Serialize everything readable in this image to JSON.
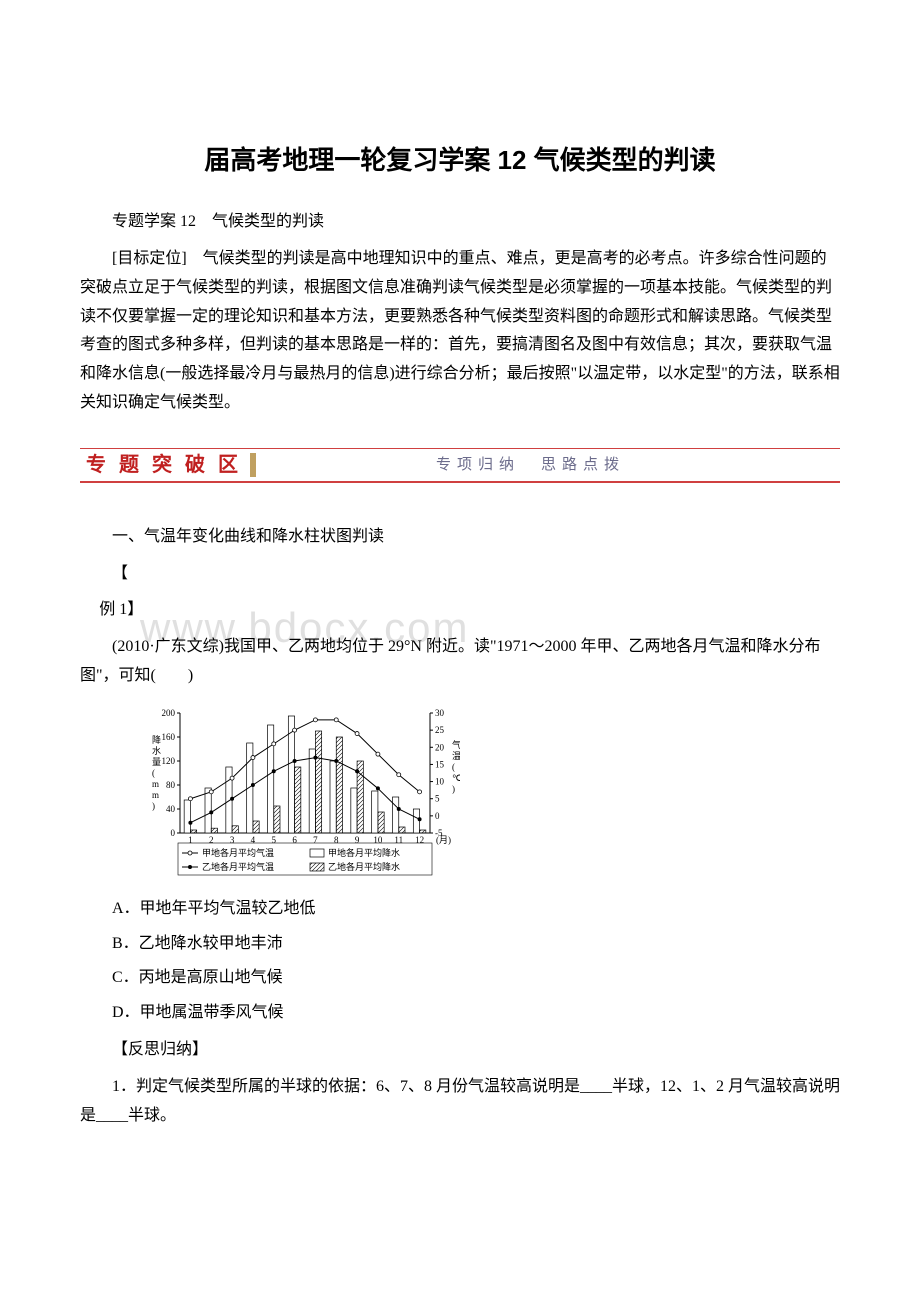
{
  "title": "届高考地理一轮复习学案 12 气候类型的判读",
  "subtitle_line": "专题学案 12　气候类型的判读",
  "target_para": "[目标定位]　气候类型的判读是高中地理知识中的重点、难点，更是高考的必考点。许多综合性问题的突破点立足于气候类型的判读，根据图文信息准确判读气候类型是必须掌握的一项基本技能。气候类型的判读不仅要掌握一定的理论知识和基本方法，更要熟悉各种气候类型资料图的命题形式和解读思路。气候类型考查的图式多种多样，但判读的基本思路是一样的：首先，要搞清图名及图中有效信息；其次，要获取气温和降水信息(一般选择最冷月与最热月的信息)进行综合分析；最后按照\"以温定带，以水定型\"的方法，联系相关知识确定气候类型。",
  "banner": {
    "left": "专 题 突 破 区",
    "right": "专项归纳　思路点拨",
    "left_color": "#c02020",
    "right_color": "#6b6b8b",
    "border_color": "#d04040"
  },
  "section1_heading": "一、气温年变化曲线和降水柱状图判读",
  "bracket_open": "【",
  "example_label": "例 1】",
  "watermark_text": "www.bdocx.com",
  "question_text": "(2010·广东文综)我国甲、乙两地均位于 29°N 附近。读\"1971～2000 年甲、乙两地各月气温和降水分布图\"，可知(　　)",
  "chart": {
    "type": "combo-bar-line",
    "months": [
      "1",
      "2",
      "3",
      "4",
      "5",
      "6",
      "7",
      "8",
      "9",
      "10",
      "11",
      "12"
    ],
    "x_label_suffix": "(月)",
    "y_left_label": "降水量(mm)",
    "y_left_ticks": [
      0,
      40,
      80,
      120,
      160,
      200
    ],
    "y_right_label": "气温(℃)",
    "y_right_ticks": [
      -5,
      0,
      5,
      10,
      15,
      20,
      25,
      30
    ],
    "jia_temp": [
      5,
      7,
      11,
      17,
      21,
      25,
      28,
      28,
      24,
      18,
      12,
      7
    ],
    "yi_temp": [
      -2,
      1,
      5,
      9,
      13,
      16,
      17,
      16,
      13,
      8,
      2,
      -1
    ],
    "jia_precip": [
      55,
      75,
      110,
      150,
      180,
      195,
      140,
      120,
      75,
      70,
      60,
      40
    ],
    "yi_precip": [
      5,
      8,
      12,
      20,
      45,
      110,
      170,
      160,
      120,
      35,
      10,
      5
    ],
    "colors": {
      "axis": "#000000",
      "grid": "#000000",
      "jia_line": "#000000",
      "yi_line": "#000000",
      "jia_bar_fill": "#ffffff",
      "jia_bar_stroke": "#000000",
      "yi_bar_fill": "#ffffff",
      "yi_bar_stroke": "#000000",
      "background": "#ffffff"
    },
    "legend": {
      "jia_temp": "甲地各月平均气温",
      "jia_precip": "甲地各月平均降水",
      "yi_temp": "乙地各月平均气温",
      "yi_precip": "乙地各月平均降水"
    },
    "styling": {
      "jia_marker": "open-circle",
      "yi_marker": "filled-circle",
      "jia_bar_pattern": "none",
      "yi_bar_pattern": "diagonal-hatch",
      "line_width": 1,
      "bar_group_gap": 2,
      "font_size_axis": 9,
      "font_size_legend": 9
    }
  },
  "options": {
    "A": "A．甲地年平均气温较乙地低",
    "B": "B．乙地降水较甲地丰沛",
    "C": "C．丙地是高原山地气候",
    "D": "D．甲地属温带季风气候"
  },
  "reflect_heading": "【反思归纳】",
  "reflect_para": "1．判定气候类型所属的半球的依据：6、7、8 月份气温较高说明是____半球，12、1、2 月气温较高说明是____半球。"
}
